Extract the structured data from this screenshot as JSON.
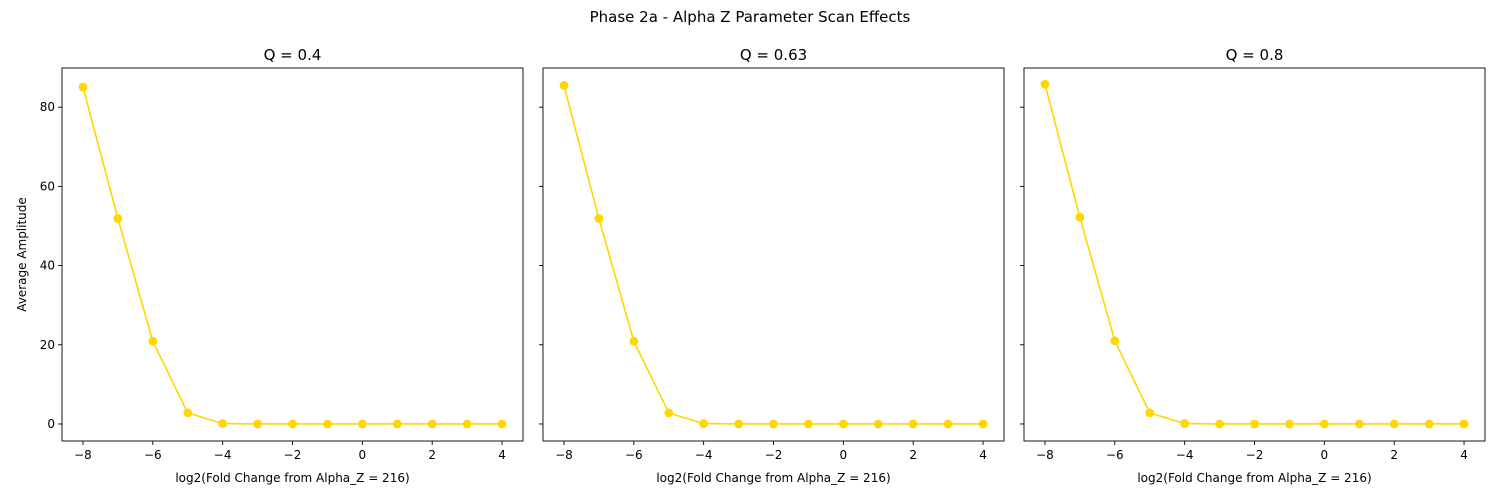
{
  "figure": {
    "suptitle": "Phase 2a - Alpha Z Parameter Scan Effects",
    "line_color": "#FFD700"
  },
  "chart_data": [
    {
      "type": "line",
      "title": "Q = 0.4",
      "xlabel": "log2(Fold Change from Alpha_Z = 216)",
      "ylabel": "Average Amplitude",
      "xlim": [
        -8.6,
        4.6
      ],
      "ylim": [
        -4.3,
        89.9
      ],
      "xticks": [
        -8,
        -6,
        -4,
        -2,
        0,
        2,
        4
      ],
      "xtick_labels": [
        "−8",
        "−6",
        "−4",
        "−2",
        "0",
        "2",
        "4"
      ],
      "yticks": [
        0,
        20,
        40,
        60,
        80
      ],
      "ytick_labels": [
        "0",
        "20",
        "40",
        "60",
        "80"
      ],
      "grid": false,
      "series": [
        {
          "x": [
            -8,
            -7,
            -6,
            -5,
            -4,
            -3,
            -2,
            -1,
            0,
            1,
            2,
            3,
            4
          ],
          "y": [
            85.1,
            51.9,
            20.9,
            2.8,
            0.1,
            0,
            0,
            0,
            0,
            0,
            0,
            0,
            0
          ]
        }
      ]
    },
    {
      "type": "line",
      "title": "Q = 0.63",
      "xlabel": "log2(Fold Change from Alpha_Z = 216)",
      "ylabel": "",
      "xlim": [
        -8.6,
        4.6
      ],
      "ylim": [
        -4.3,
        89.9
      ],
      "xticks": [
        -8,
        -6,
        -4,
        -2,
        0,
        2,
        4
      ],
      "xtick_labels": [
        "−8",
        "−6",
        "−4",
        "−2",
        "0",
        "2",
        "4"
      ],
      "yticks": [
        0,
        20,
        40,
        60,
        80
      ],
      "ytick_labels": [],
      "grid": false,
      "series": [
        {
          "x": [
            -8,
            -7,
            -6,
            -5,
            -4,
            -3,
            -2,
            -1,
            0,
            1,
            2,
            3,
            4
          ],
          "y": [
            85.5,
            51.9,
            20.9,
            2.8,
            0.1,
            0,
            0,
            0,
            0,
            0,
            0,
            0,
            0
          ]
        }
      ]
    },
    {
      "type": "line",
      "title": "Q = 0.8",
      "xlabel": "log2(Fold Change from Alpha_Z = 216)",
      "ylabel": "",
      "xlim": [
        -8.6,
        4.6
      ],
      "ylim": [
        -4.3,
        89.9
      ],
      "xticks": [
        -8,
        -6,
        -4,
        -2,
        0,
        2,
        4
      ],
      "xtick_labels": [
        "−8",
        "−6",
        "−4",
        "−2",
        "0",
        "2",
        "4"
      ],
      "yticks": [
        0,
        20,
        40,
        60,
        80
      ],
      "ytick_labels": [],
      "grid": false,
      "series": [
        {
          "x": [
            -8,
            -7,
            -6,
            -5,
            -4,
            -3,
            -2,
            -1,
            0,
            1,
            2,
            3,
            4
          ],
          "y": [
            85.8,
            52.2,
            21.0,
            2.8,
            0.1,
            0,
            0,
            0,
            0,
            0,
            0,
            0,
            0
          ]
        }
      ]
    }
  ]
}
